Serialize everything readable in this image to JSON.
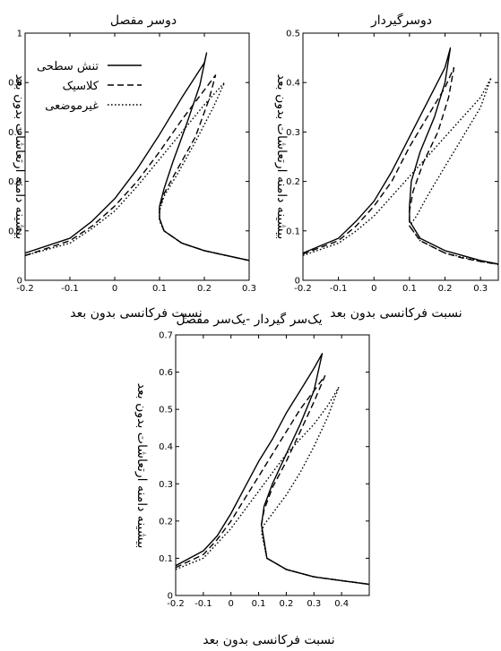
{
  "chart_data": [
    {
      "type": "line",
      "title": "دوسر مفصل",
      "xlabel": "نسبت فرکانسی بدون بعد",
      "ylabel": "بیشینه دامنه ارتعاشات بدون بعد",
      "xlim": [
        -0.2,
        0.3
      ],
      "ylim": [
        0,
        1
      ],
      "xticks": [
        "-0.2",
        "-0.1",
        "0",
        "0.1",
        "0.2",
        "0.3"
      ],
      "yticks": [
        "0",
        "0.2",
        "0.4",
        "0.6",
        "0.8",
        "1"
      ],
      "grid": false,
      "legend": "top-left",
      "series": [
        {
          "name": "تنش سطحی",
          "dash": "solid",
          "x": [
            -0.2,
            -0.1,
            -0.05,
            0,
            0.05,
            0.1,
            0.15,
            0.2,
            0.205,
            0.19,
            0.16,
            0.13,
            0.11,
            0.1,
            0.1,
            0.11,
            0.15,
            0.2,
            0.25,
            0.3
          ],
          "y": [
            0.11,
            0.17,
            0.24,
            0.33,
            0.45,
            0.59,
            0.74,
            0.88,
            0.92,
            0.79,
            0.63,
            0.48,
            0.37,
            0.3,
            0.25,
            0.2,
            0.15,
            0.12,
            0.1,
            0.08
          ]
        },
        {
          "name": "کلاسیک",
          "dash": "dashed",
          "x": [
            -0.2,
            -0.1,
            -0.05,
            0,
            0.05,
            0.1,
            0.15,
            0.2,
            0.225,
            0.21,
            0.18,
            0.14,
            0.11,
            0.1,
            0.1,
            0.11,
            0.15,
            0.2,
            0.25,
            0.3
          ],
          "y": [
            0.1,
            0.16,
            0.22,
            0.3,
            0.4,
            0.52,
            0.65,
            0.77,
            0.83,
            0.73,
            0.58,
            0.45,
            0.35,
            0.29,
            0.25,
            0.2,
            0.15,
            0.12,
            0.1,
            0.08
          ]
        },
        {
          "name": "غیرموضعی",
          "dash": "dotted",
          "x": [
            -0.2,
            -0.1,
            -0.05,
            0,
            0.05,
            0.1,
            0.15,
            0.2,
            0.245,
            0.22,
            0.18,
            0.14,
            0.11,
            0.1,
            0.1,
            0.11,
            0.15,
            0.2,
            0.25,
            0.3
          ],
          "y": [
            0.1,
            0.15,
            0.21,
            0.28,
            0.38,
            0.49,
            0.6,
            0.71,
            0.8,
            0.7,
            0.56,
            0.43,
            0.34,
            0.28,
            0.24,
            0.2,
            0.15,
            0.12,
            0.1,
            0.08
          ]
        }
      ]
    },
    {
      "type": "line",
      "title": "دوسرگیردار",
      "xlabel": "نسبت فرکانسی بدون بعد",
      "ylabel": "بیشینه دامنه ارتعاشات بدون بعد",
      "xlim": [
        -0.2,
        0.35
      ],
      "ylim": [
        0,
        0.5
      ],
      "xticks": [
        "-0.2",
        "-0.1",
        "0",
        "0.1",
        "0.2",
        "0.3"
      ],
      "yticks": [
        "0",
        "0.1",
        "0.2",
        "0.3",
        "0.4",
        "0.5"
      ],
      "grid": false,
      "legend": "none",
      "series": [
        {
          "name": "تنش سطحی",
          "dash": "solid",
          "x": [
            -0.2,
            -0.1,
            -0.05,
            0,
            0.05,
            0.1,
            0.15,
            0.2,
            0.215,
            0.2,
            0.17,
            0.13,
            0.105,
            0.1,
            0.1,
            0.13,
            0.2,
            0.25,
            0.3,
            0.35
          ],
          "y": [
            0.055,
            0.085,
            0.12,
            0.16,
            0.22,
            0.29,
            0.36,
            0.43,
            0.47,
            0.4,
            0.33,
            0.26,
            0.2,
            0.15,
            0.12,
            0.085,
            0.06,
            0.05,
            0.04,
            0.033
          ]
        },
        {
          "name": "کلاسیک",
          "dash": "dashed",
          "x": [
            -0.2,
            -0.1,
            -0.05,
            0,
            0.05,
            0.1,
            0.15,
            0.2,
            0.225,
            0.21,
            0.18,
            0.14,
            0.11,
            0.1,
            0.1,
            0.13,
            0.2,
            0.25,
            0.3,
            0.35
          ],
          "y": [
            0.053,
            0.08,
            0.11,
            0.15,
            0.2,
            0.27,
            0.33,
            0.39,
            0.43,
            0.37,
            0.3,
            0.24,
            0.18,
            0.14,
            0.11,
            0.08,
            0.055,
            0.045,
            0.038,
            0.032
          ]
        },
        {
          "name": "غیرموضعی",
          "dash": "dotted",
          "x": [
            -0.2,
            -0.1,
            -0.05,
            0,
            0.05,
            0.1,
            0.15,
            0.2,
            0.25,
            0.3,
            0.33,
            0.3,
            0.25,
            0.2,
            0.15,
            0.12,
            0.1,
            0.13,
            0.2,
            0.3,
            0.35
          ],
          "y": [
            0.05,
            0.075,
            0.1,
            0.13,
            0.17,
            0.21,
            0.25,
            0.29,
            0.33,
            0.37,
            0.41,
            0.35,
            0.29,
            0.23,
            0.17,
            0.13,
            0.11,
            0.08,
            0.055,
            0.038,
            0.032
          ]
        }
      ]
    },
    {
      "type": "line",
      "title": "یک‌سر گیردار -یک‌سر مفصل",
      "xlabel": "نسبت فرکانسی بدون بعد",
      "ylabel": "بیشینه دامنه ارتعاشات بدون بعد",
      "xlim": [
        -0.2,
        0.5
      ],
      "ylim": [
        0,
        0.7
      ],
      "xticks": [
        "-0.2",
        "-0.1",
        "0",
        "0.1",
        "0.2",
        "0.3",
        "0.4"
      ],
      "yticks": [
        "0",
        "0.1",
        "0.2",
        "0.3",
        "0.4",
        "0.5",
        "0.6",
        "0.7"
      ],
      "grid": false,
      "legend": "none",
      "series": [
        {
          "name": "تنش سطحی",
          "dash": "solid",
          "x": [
            -0.2,
            -0.1,
            -0.05,
            0,
            0.05,
            0.1,
            0.15,
            0.2,
            0.25,
            0.3,
            0.33,
            0.3,
            0.25,
            0.2,
            0.15,
            0.12,
            0.11,
            0.13,
            0.2,
            0.3,
            0.4,
            0.5
          ],
          "y": [
            0.08,
            0.12,
            0.16,
            0.22,
            0.29,
            0.36,
            0.42,
            0.49,
            0.55,
            0.61,
            0.65,
            0.55,
            0.46,
            0.38,
            0.3,
            0.24,
            0.19,
            0.1,
            0.07,
            0.05,
            0.04,
            0.03
          ]
        },
        {
          "name": "کلاسیک",
          "dash": "dashed",
          "x": [
            -0.2,
            -0.1,
            -0.05,
            0,
            0.05,
            0.1,
            0.15,
            0.2,
            0.25,
            0.3,
            0.34,
            0.3,
            0.25,
            0.2,
            0.15,
            0.12,
            0.11,
            0.13,
            0.2,
            0.3,
            0.4,
            0.5
          ],
          "y": [
            0.075,
            0.11,
            0.15,
            0.2,
            0.26,
            0.32,
            0.38,
            0.44,
            0.5,
            0.55,
            0.59,
            0.52,
            0.44,
            0.36,
            0.29,
            0.23,
            0.19,
            0.1,
            0.07,
            0.05,
            0.04,
            0.03
          ]
        },
        {
          "name": "غیرموضعی",
          "dash": "dotted",
          "x": [
            -0.2,
            -0.1,
            -0.05,
            0,
            0.05,
            0.1,
            0.15,
            0.2,
            0.25,
            0.3,
            0.35,
            0.39,
            0.35,
            0.3,
            0.25,
            0.2,
            0.15,
            0.12,
            0.11,
            0.13,
            0.2,
            0.3,
            0.4,
            0.5
          ],
          "y": [
            0.07,
            0.1,
            0.14,
            0.18,
            0.23,
            0.28,
            0.33,
            0.38,
            0.42,
            0.46,
            0.51,
            0.56,
            0.48,
            0.4,
            0.33,
            0.27,
            0.22,
            0.19,
            0.17,
            0.1,
            0.07,
            0.05,
            0.04,
            0.03
          ]
        }
      ]
    }
  ]
}
